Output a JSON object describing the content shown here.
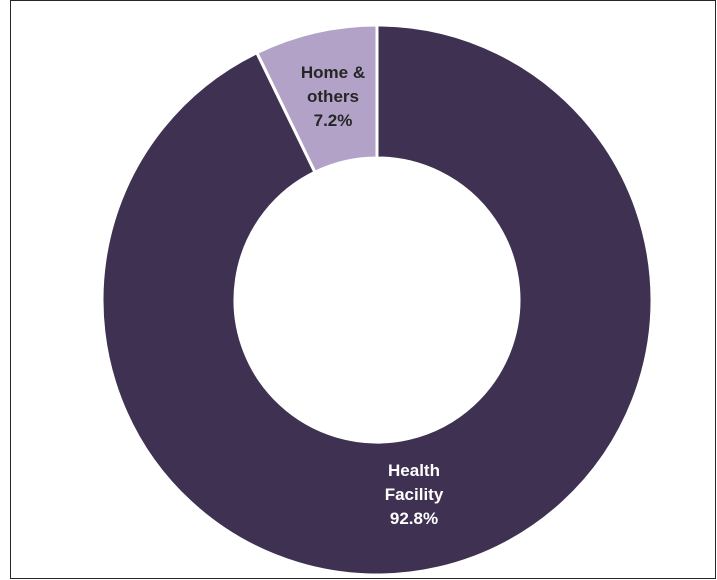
{
  "chart_data": {
    "type": "pie",
    "variant": "donut",
    "title": "",
    "slices": [
      {
        "category": "Home & others",
        "label_lines": [
          "Home &",
          "others"
        ],
        "percent_label": "7.2%",
        "value": 7.2,
        "color": "#b3a2c7",
        "label_color": "#262626"
      },
      {
        "category": "Health Facility",
        "label_lines": [
          "Health",
          "Facility"
        ],
        "percent_label": "92.8%",
        "value": 92.8,
        "color": "#3f3151",
        "label_color": "#ffffff"
      }
    ],
    "legend": "none",
    "slice_border_color": "#ffffff"
  }
}
